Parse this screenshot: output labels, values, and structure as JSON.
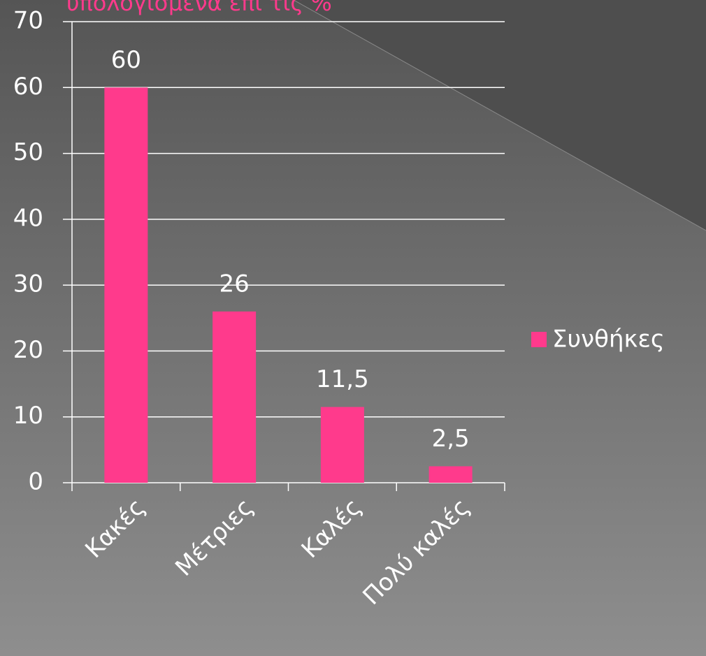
{
  "chart_data": {
    "type": "bar",
    "title": "υπολογισμένα επί τις %",
    "categories": [
      "Κακές",
      "Μέτριες",
      "Καλές",
      "Πολύ καλές"
    ],
    "series": [
      {
        "name": "Συνθήκες",
        "color": "#ff3a8c",
        "values": [
          60,
          26,
          11.5,
          2.5
        ],
        "value_labels": [
          "60",
          "26",
          "11,5",
          "2,5"
        ]
      }
    ],
    "ylim": [
      0,
      70
    ],
    "yticks": [
      0,
      10,
      20,
      30,
      40,
      50,
      60,
      70
    ],
    "grid": true,
    "legend": "right"
  }
}
